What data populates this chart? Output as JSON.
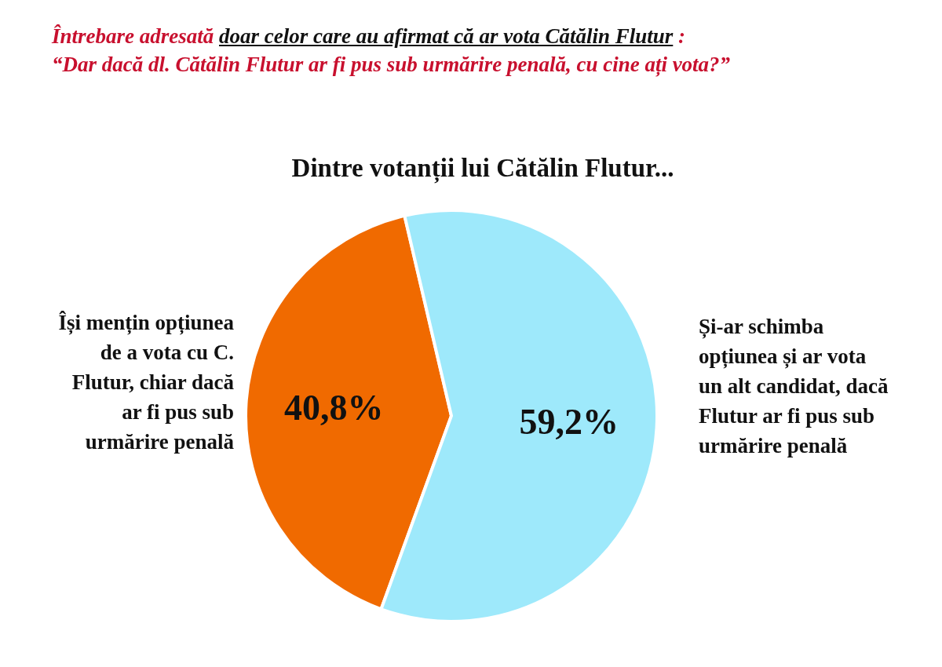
{
  "chart_data": {
    "type": "pie",
    "title": "Dintre votanții lui Cătălin Flutur...",
    "annotations": [
      "Întrebare adresată",
      "doar celor care au afirmat că ar vota Cătălin Flutur",
      " :",
      "“Dar dacă dl. Cătălin Flutur ar fi pus sub urmărire penală, cu cine ați vota?”"
    ],
    "categories": [
      "Își mențin opțiunea de a vota cu C. Flutur, chiar dacă ar fi pus sub urmărire penală",
      "Și-ar schimba opțiunea și ar vota un alt candidat, dacă Flutur ar fi pus sub urmărire penală"
    ],
    "values": [
      40.8,
      59.2
    ],
    "colors": [
      "#f06a00",
      "#9ee9fb"
    ],
    "value_labels": [
      "40,8%",
      "59,2%"
    ]
  }
}
